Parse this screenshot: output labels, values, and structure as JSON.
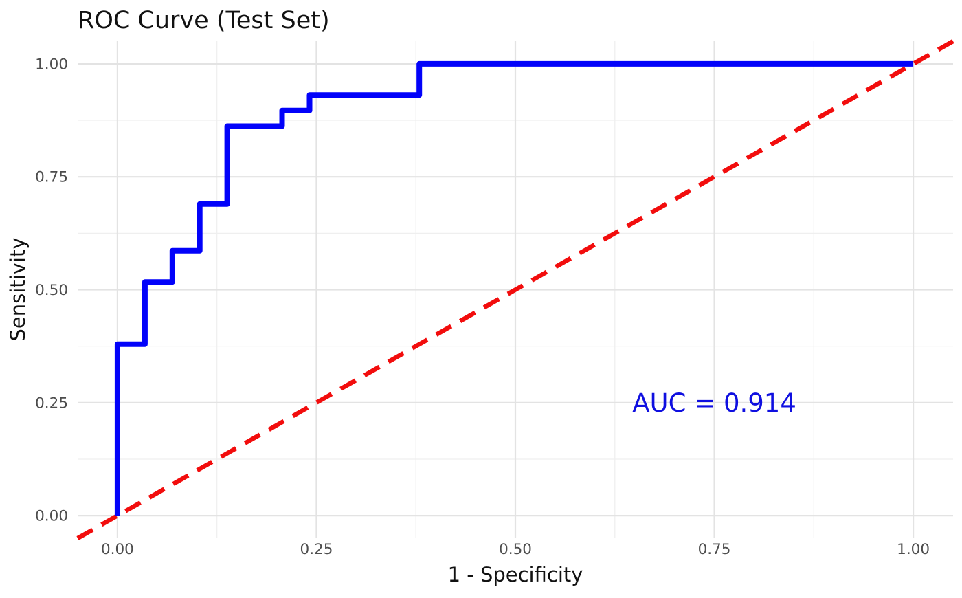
{
  "figure": {
    "background": "#ffffff"
  },
  "chart_data": {
    "type": "line",
    "subtype": "roc-step-curve",
    "title": "ROC Curve (Test Set)",
    "xlabel": "1 - Specificity",
    "ylabel": "Sensitivity",
    "xlim": [
      0,
      1
    ],
    "ylim": [
      0,
      1
    ],
    "expansion": 0.05,
    "grid": "on",
    "legend": "none",
    "x_ticks": {
      "values": [
        0,
        0.25,
        0.5,
        0.75,
        1
      ],
      "labels": [
        "0.00",
        "0.25",
        "0.50",
        "0.75",
        "1.00"
      ]
    },
    "y_ticks": {
      "values": [
        0,
        0.25,
        0.5,
        0.75,
        1
      ],
      "labels": [
        "0.00",
        "0.25",
        "0.50",
        "0.75",
        "1.00"
      ]
    },
    "minor_ticks": [
      0.125,
      0.375,
      0.625,
      0.875
    ],
    "series": [
      {
        "name": "ROC curve",
        "color": "#0202fa",
        "width": 8,
        "points": [
          [
            0,
            0
          ],
          [
            0,
            0.3793
          ],
          [
            0.0345,
            0.3793
          ],
          [
            0.0345,
            0.5172
          ],
          [
            0.069,
            0.5172
          ],
          [
            0.069,
            0.5862
          ],
          [
            0.1034,
            0.5862
          ],
          [
            0.1034,
            0.6897
          ],
          [
            0.1379,
            0.6897
          ],
          [
            0.1379,
            0.8621
          ],
          [
            0.2069,
            0.8621
          ],
          [
            0.2069,
            0.8966
          ],
          [
            0.2414,
            0.8966
          ],
          [
            0.2414,
            0.931
          ],
          [
            0.3793,
            0.931
          ],
          [
            0.3793,
            1
          ],
          [
            1,
            1
          ]
        ]
      }
    ],
    "reference_line": {
      "name": "chance diagonal",
      "style": "dashed",
      "color": "#f20d0d",
      "width": 6.5,
      "dash": [
        25,
        15
      ],
      "from": [
        -0.05,
        -0.05
      ],
      "to": [
        1.05,
        1.05
      ]
    },
    "annotation": {
      "text": "AUC = 0.914",
      "x": 0.75,
      "y": 0.25,
      "color": "#0f0fe0"
    },
    "auc": 0.914,
    "colors": {
      "grid_major": "#e3e3e3",
      "grid_minor": "#efefef",
      "tick_label": "#4d4d4d",
      "text": "#111111"
    }
  }
}
